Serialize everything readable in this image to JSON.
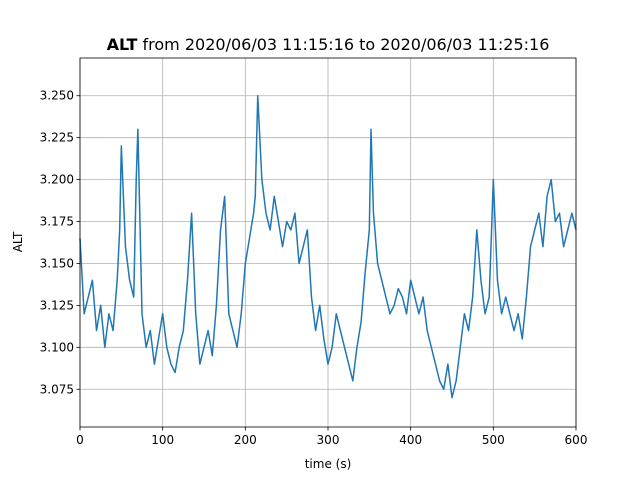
{
  "chart_data": {
    "type": "line",
    "title_bold": "ALT",
    "title_rest": " from 2020/06/03 11:15:16 to 2020/06/03 11:25:16",
    "xlabel": "time (s)",
    "ylabel": "ALT",
    "xlim": [
      0,
      600
    ],
    "ylim": [
      3.0525,
      3.2725
    ],
    "xticks": [
      0,
      100,
      200,
      300,
      400,
      500,
      600
    ],
    "xtick_labels": [
      "0",
      "100",
      "200",
      "300",
      "400",
      "500",
      "600"
    ],
    "yticks": [
      3.075,
      3.1,
      3.125,
      3.15,
      3.175,
      3.2,
      3.225,
      3.25
    ],
    "ytick_labels": [
      "3.075",
      "3.100",
      "3.125",
      "3.150",
      "3.175",
      "3.200",
      "3.225",
      "3.250"
    ],
    "grid": true,
    "line_color": "#1f77b4",
    "series": [
      {
        "x": [
          0,
          5,
          10,
          15,
          20,
          25,
          30,
          35,
          40,
          45,
          48,
          50,
          55,
          60,
          65,
          68,
          70,
          75,
          80,
          85,
          90,
          95,
          100,
          105,
          110,
          115,
          120,
          125,
          130,
          135,
          140,
          145,
          150,
          155,
          160,
          165,
          170,
          175,
          180,
          185,
          190,
          195,
          200,
          205,
          210,
          212,
          215,
          220,
          225,
          230,
          235,
          240,
          245,
          250,
          255,
          260,
          265,
          270,
          275,
          280,
          285,
          290,
          295,
          300,
          305,
          310,
          315,
          320,
          325,
          330,
          335,
          340,
          345,
          350,
          352,
          355,
          360,
          365,
          370,
          375,
          380,
          385,
          390,
          395,
          400,
          405,
          410,
          415,
          420,
          425,
          430,
          435,
          440,
          445,
          450,
          455,
          460,
          465,
          470,
          475,
          480,
          485,
          490,
          495,
          500,
          505,
          510,
          515,
          520,
          525,
          530,
          535,
          540,
          545,
          550,
          555,
          560,
          565,
          570,
          575,
          580,
          585,
          590,
          595,
          600
        ],
        "y": [
          3.165,
          3.12,
          3.13,
          3.14,
          3.11,
          3.125,
          3.1,
          3.12,
          3.11,
          3.14,
          3.17,
          3.22,
          3.16,
          3.14,
          3.13,
          3.2,
          3.23,
          3.12,
          3.1,
          3.11,
          3.09,
          3.105,
          3.12,
          3.1,
          3.09,
          3.085,
          3.1,
          3.11,
          3.14,
          3.18,
          3.12,
          3.09,
          3.1,
          3.11,
          3.095,
          3.125,
          3.17,
          3.19,
          3.12,
          3.11,
          3.1,
          3.12,
          3.15,
          3.165,
          3.18,
          3.19,
          3.25,
          3.2,
          3.18,
          3.17,
          3.19,
          3.175,
          3.16,
          3.175,
          3.17,
          3.18,
          3.15,
          3.16,
          3.17,
          3.13,
          3.11,
          3.125,
          3.105,
          3.09,
          3.1,
          3.12,
          3.11,
          3.1,
          3.09,
          3.08,
          3.1,
          3.115,
          3.145,
          3.17,
          3.23,
          3.18,
          3.15,
          3.14,
          3.13,
          3.12,
          3.125,
          3.135,
          3.13,
          3.12,
          3.14,
          3.13,
          3.12,
          3.13,
          3.11,
          3.1,
          3.09,
          3.08,
          3.075,
          3.09,
          3.07,
          3.08,
          3.1,
          3.12,
          3.11,
          3.13,
          3.17,
          3.14,
          3.12,
          3.13,
          3.2,
          3.14,
          3.12,
          3.13,
          3.12,
          3.11,
          3.12,
          3.105,
          3.13,
          3.16,
          3.17,
          3.18,
          3.16,
          3.19,
          3.2,
          3.175,
          3.18,
          3.16,
          3.17,
          3.18,
          3.17
        ]
      }
    ]
  }
}
